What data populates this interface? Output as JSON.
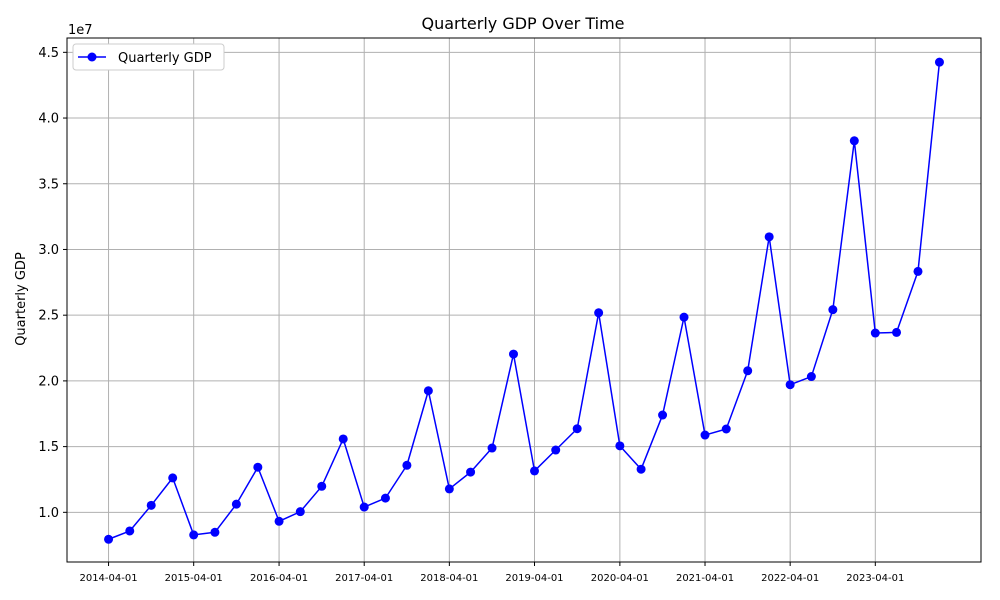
{
  "chart_data": {
    "type": "line",
    "title": "Quarterly GDP Over Time",
    "xlabel": "",
    "ylabel": "Quarterly GDP",
    "y_offset_label": "1e7",
    "y_scale_factor": 10000000,
    "x": [
      "2014-04-01",
      "2014-07-01",
      "2014-10-01",
      "2015-01-01",
      "2015-04-01",
      "2015-07-01",
      "2015-10-01",
      "2016-01-01",
      "2016-04-01",
      "2016-07-01",
      "2016-10-01",
      "2017-01-01",
      "2017-04-01",
      "2017-07-01",
      "2017-10-01",
      "2018-01-01",
      "2018-04-01",
      "2018-07-01",
      "2018-10-01",
      "2019-01-01",
      "2019-04-01",
      "2019-07-01",
      "2019-10-01",
      "2020-01-01",
      "2020-04-01",
      "2020-07-01",
      "2020-10-01",
      "2021-01-01",
      "2021-04-01",
      "2021-07-01",
      "2021-10-01",
      "2022-01-01",
      "2022-04-01",
      "2022-07-01",
      "2022-10-01",
      "2023-01-01",
      "2023-04-01",
      "2023-07-01",
      "2023-10-01",
      "2024-01-01"
    ],
    "series": [
      {
        "name": "Quarterly GDP",
        "color": "#0000ff",
        "marker": "circle",
        "values": [
          7950000,
          8580000,
          10530000,
          12620000,
          8280000,
          8480000,
          10620000,
          13430000,
          9320000,
          10050000,
          11980000,
          15580000,
          10400000,
          11080000,
          13580000,
          19250000,
          11780000,
          13060000,
          14890000,
          22040000,
          13150000,
          14740000,
          16360000,
          25180000,
          15060000,
          13280000,
          17400000,
          24850000,
          15880000,
          16340000,
          20770000,
          30960000,
          19710000,
          20330000,
          25420000,
          38270000,
          23640000,
          23690000,
          28330000,
          44250000
        ]
      }
    ],
    "x_ticks": [
      "2014-04-01",
      "2015-04-01",
      "2016-04-01",
      "2017-04-01",
      "2018-04-01",
      "2019-04-01",
      "2020-04-01",
      "2021-04-01",
      "2022-04-01",
      "2023-04-01"
    ],
    "y_ticks": [
      "1.0",
      "1.5",
      "2.0",
      "2.5",
      "3.0",
      "3.5",
      "4.0",
      "4.5"
    ],
    "y_tick_values": [
      1.0,
      1.5,
      2.0,
      2.5,
      3.0,
      3.5,
      4.0,
      4.5
    ],
    "ylim": [
      0.622,
      4.609
    ],
    "grid": true,
    "legend_position": "top-left"
  }
}
